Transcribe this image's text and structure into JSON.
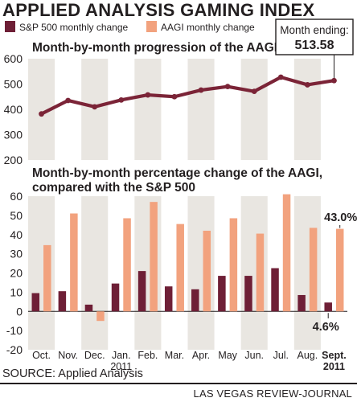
{
  "title": "APPLIED ANALYSIS GAMING INDEX",
  "source": "SOURCE: Applied Analysis",
  "publisher": "LAS VEGAS REVIEW-JOURNAL",
  "legend": {
    "sp500": "S&P 500 monthly change",
    "aagi": "AAGI monthly change"
  },
  "callout": {
    "label": "Month ending:",
    "value": "513.58"
  },
  "colors": {
    "aagi_line": "#7b2437",
    "sp500_bar": "#6e1f36",
    "aagi_bar": "#f2a27e",
    "band": "#e9e6e1"
  },
  "chart_data": [
    {
      "type": "line",
      "title": "Month-by-month progression of the AAGI",
      "categories": [
        "Oct.",
        "Nov.",
        "Dec.",
        "Jan. 2011",
        "Feb.",
        "Mar.",
        "Apr.",
        "May",
        "Jun.",
        "Jul.",
        "Aug.",
        "Sept. 2011"
      ],
      "series": [
        {
          "values": [
            382,
            435,
            410,
            437,
            457,
            450,
            476,
            490,
            471,
            527,
            497,
            513.58
          ]
        }
      ],
      "ylim": [
        200,
        600
      ],
      "yticks": [
        "200",
        "300",
        "400",
        "500",
        "600"
      ],
      "grid": false
    },
    {
      "type": "bar",
      "title": "Month-by-month percentage change of the AAGI, compared with the S&P 500",
      "categories": [
        "Oct.",
        "Nov.",
        "Dec.",
        "Jan. 2011",
        "Feb.",
        "Mar.",
        "Apr.",
        "May",
        "Jun.",
        "Jul.",
        "Aug.",
        "Sept. 2011"
      ],
      "series": [
        {
          "name": "S&P 500 monthly change",
          "values": [
            9.5,
            10.5,
            3.5,
            14.5,
            21,
            13,
            11.5,
            18.5,
            18.5,
            22.5,
            8.5,
            4.6
          ]
        },
        {
          "name": "AAGI monthly change",
          "values": [
            34.5,
            51,
            -5,
            48.5,
            57,
            45.5,
            42,
            48.5,
            40.5,
            61,
            43.5,
            43.0
          ]
        }
      ],
      "annotations": [
        {
          "series": "AAGI monthly change",
          "category": "Sept. 2011",
          "text": "43.0%"
        },
        {
          "series": "S&P 500 monthly change",
          "category": "Sept. 2011",
          "text": "4.6%"
        }
      ],
      "ylim": [
        -20,
        60
      ],
      "yticks": [
        "-20",
        "-10",
        "0",
        "10",
        "20",
        "30",
        "40",
        "50",
        "60"
      ],
      "grid": false
    }
  ],
  "x_labels": [
    [
      "Oct."
    ],
    [
      "Nov."
    ],
    [
      "Dec."
    ],
    [
      "Jan.",
      "2011"
    ],
    [
      "Feb."
    ],
    [
      "Mar."
    ],
    [
      "Apr."
    ],
    [
      "May"
    ],
    [
      "Jun."
    ],
    [
      "Jul."
    ],
    [
      "Aug."
    ],
    [
      "Sept.",
      "2011"
    ]
  ]
}
